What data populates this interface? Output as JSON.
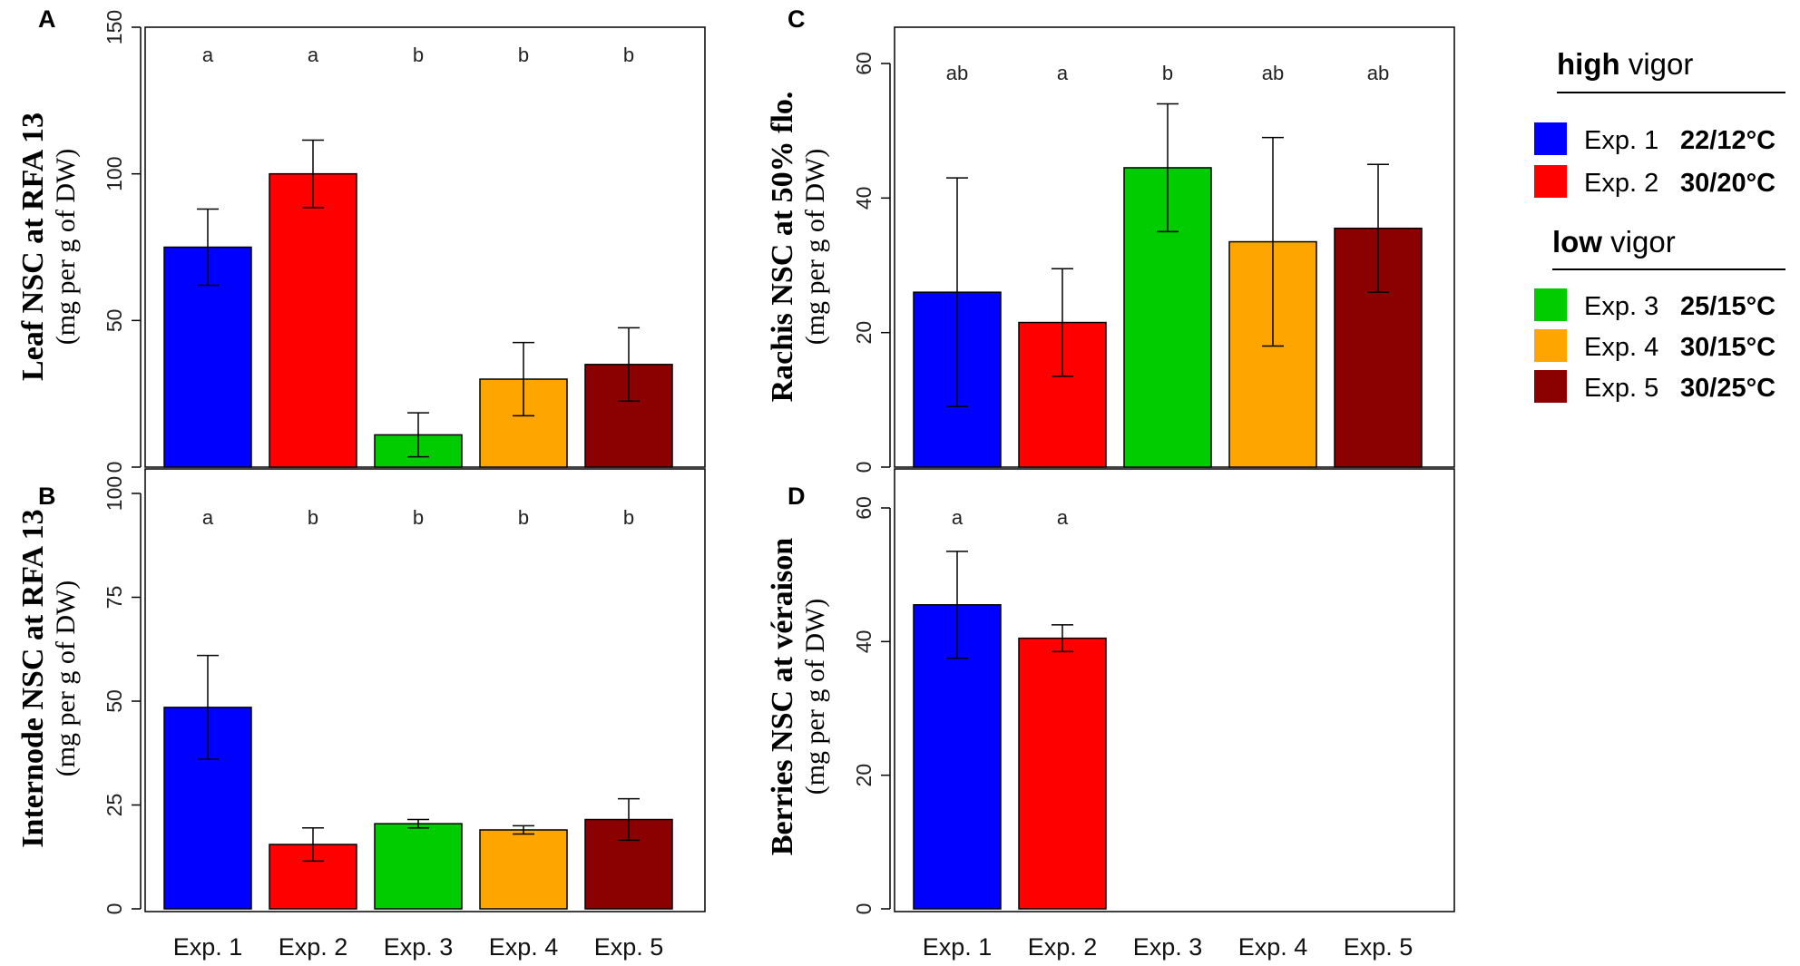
{
  "legend": {
    "groups": [
      {
        "strong": "high",
        "rest": " vigor",
        "items": [
          {
            "exp": "Exp. 1",
            "temp": "22/12°C",
            "color": "#0000ff"
          },
          {
            "exp": "Exp. 2",
            "temp": "30/20°C",
            "color": "#ff0000"
          }
        ]
      },
      {
        "strong": "low",
        "rest": " vigor",
        "items": [
          {
            "exp": "Exp. 3",
            "temp": "25/15°C",
            "color": "#00cc00"
          },
          {
            "exp": "Exp. 4",
            "temp": "30/15°C",
            "color": "#ffa500"
          },
          {
            "exp": "Exp. 5",
            "temp": "30/25°C",
            "color": "#8b0000"
          }
        ]
      }
    ]
  },
  "chart_data": [
    {
      "panel": "A",
      "type": "bar",
      "ylabel": "Leaf NSC at RFA 13",
      "ysub": "(mg per g of DW)",
      "categories": [
        "Exp. 1",
        "Exp. 2",
        "Exp. 3",
        "Exp. 4",
        "Exp. 5"
      ],
      "values": [
        75,
        100,
        11,
        30,
        35
      ],
      "errors": [
        13,
        11.5,
        7.5,
        12.5,
        12.5
      ],
      "significance": [
        "a",
        "a",
        "b",
        "b",
        "b"
      ],
      "colors": [
        "#0000ff",
        "#ff0000",
        "#00cc00",
        "#ffa500",
        "#8b0000"
      ],
      "ylim": [
        0,
        150
      ],
      "yticks": [
        0,
        50,
        100,
        150
      ],
      "show_xlabels": false
    },
    {
      "panel": "B",
      "type": "bar",
      "ylabel": "Internode NSC at RFA 13",
      "ysub": "(mg per g of DW)",
      "categories": [
        "Exp. 1",
        "Exp. 2",
        "Exp. 3",
        "Exp. 4",
        "Exp. 5"
      ],
      "values": [
        48.5,
        15.5,
        20.5,
        19,
        21.5
      ],
      "errors": [
        12.5,
        4,
        1,
        1,
        5
      ],
      "significance": [
        "a",
        "b",
        "b",
        "b",
        "b"
      ],
      "colors": [
        "#0000ff",
        "#ff0000",
        "#00cc00",
        "#ffa500",
        "#8b0000"
      ],
      "ylim": [
        0,
        100
      ],
      "yticks": [
        0,
        25,
        50,
        75,
        100
      ],
      "show_xlabels": true
    },
    {
      "panel": "C",
      "type": "bar",
      "ylabel": "Rachis NSC at 50% flo.",
      "ysub": "(mg per g of DW)",
      "categories": [
        "Exp. 1",
        "Exp. 2",
        "Exp. 3",
        "Exp. 4",
        "Exp. 5"
      ],
      "values": [
        26,
        21.5,
        44.5,
        33.5,
        35.5
      ],
      "errors": [
        17,
        8,
        9.5,
        15.5,
        9.5
      ],
      "significance": [
        "ab",
        "a",
        "b",
        "ab",
        "ab"
      ],
      "colors": [
        "#0000ff",
        "#ff0000",
        "#00cc00",
        "#ffa500",
        "#8b0000"
      ],
      "ylim": [
        0,
        60
      ],
      "yticks": [
        0,
        20,
        40,
        60
      ],
      "show_xlabels": false
    },
    {
      "panel": "D",
      "type": "bar",
      "ylabel": "Berries NSC at véraison",
      "ysub": "(mg per g of DW)",
      "categories": [
        "Exp. 1",
        "Exp. 2",
        "Exp. 3",
        "Exp. 4",
        "Exp. 5"
      ],
      "values": [
        45.5,
        40.5,
        null,
        null,
        null
      ],
      "errors": [
        8,
        2,
        null,
        null,
        null
      ],
      "significance": [
        "a",
        "a",
        "",
        "",
        ""
      ],
      "colors": [
        "#0000ff",
        "#ff0000",
        "#00cc00",
        "#ffa500",
        "#8b0000"
      ],
      "ylim": [
        0,
        60
      ],
      "yticks": [
        0,
        20,
        40,
        60
      ],
      "show_xlabels": true
    }
  ]
}
